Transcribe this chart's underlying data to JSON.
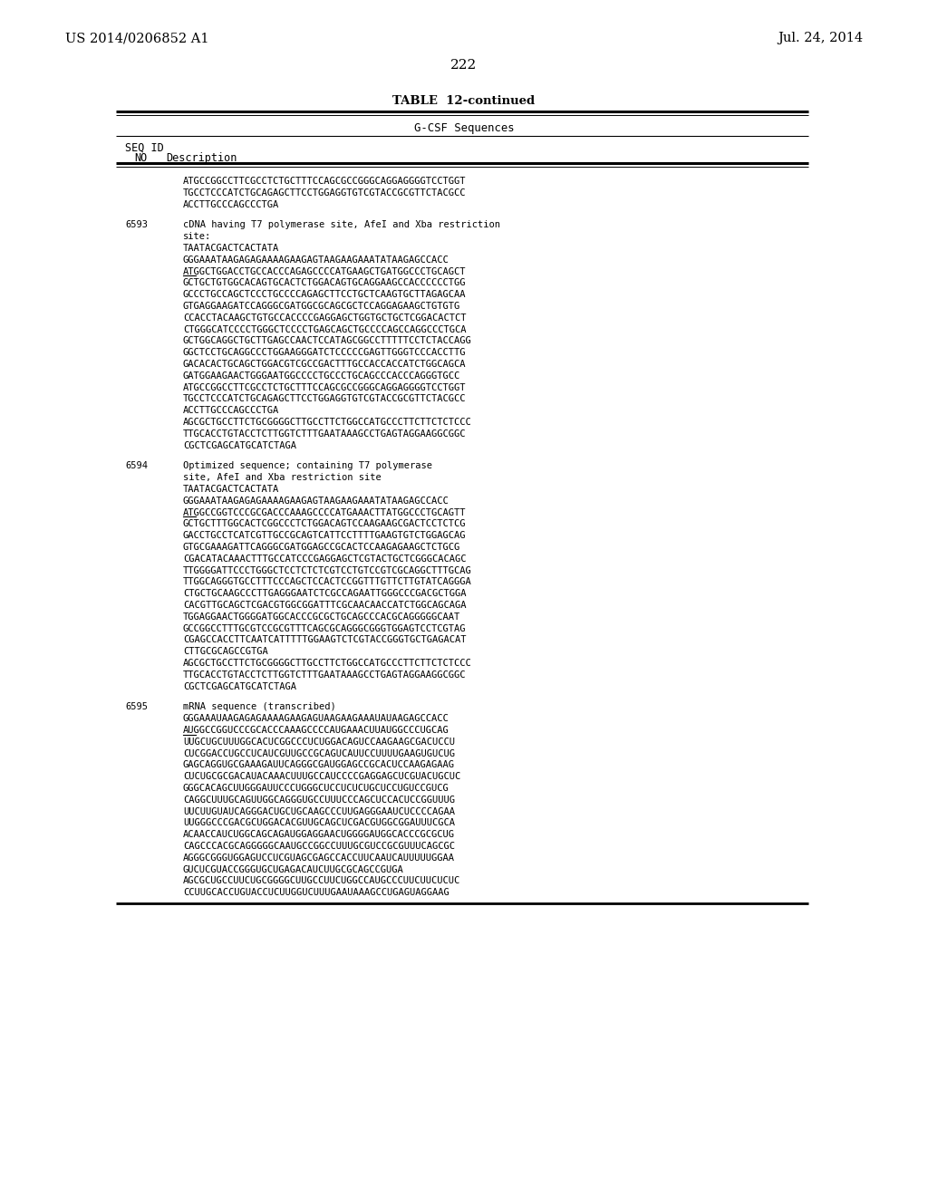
{
  "header_left": "US 2014/0206852 A1",
  "header_right": "Jul. 24, 2014",
  "page_number": "222",
  "table_title": "TABLE  12-continued",
  "table_header": "G-CSF Sequences",
  "col1": "SEQ ID",
  "col2": "NO",
  "col3": "Description",
  "seq_prefix": [
    "ATGCCGGCCTTCGCCTCTGCTTTCCAGCGCCGGGCAGGAGGGGTCCTGGT",
    "TGCCTCCCATCTGCAGAGCTTCCTGGAGGTGTCGTACCGCGTTCTACGCC",
    "ACCTTGCCCAGCCCTGA"
  ],
  "entry_6593_desc1": "cDNA having T7 polymerase site, AfeI and Xba restriction",
  "entry_6593_desc2": "site:",
  "entry_6593_lines": [
    [
      "TAATACGACTCACTATA",
      false
    ],
    [
      "GGGAAATAAGAGAGAAAAGAAGAGTAAGAAGAAATATAAGAGCCACC",
      false
    ],
    [
      "ATGGCTGGACCTGCCACCCAGAGCCCCATGAAGCTGATGGCCCTGCAGCT",
      true
    ],
    [
      "GCTGCTGTGGCACAGTGCACTCTGGACAGTGCAGGAAGCCACCCCCCTGG",
      false
    ],
    [
      "GCCCTGCCAGCTCCCTGCCCCAGAGCTTCCTGCTCAAGTGCTTAGAGCAA",
      false
    ],
    [
      "GTGAGGAAGATCCAGGGCGATGGCGCAGCGCTCCAGGAGAAGCTGTGTG",
      false
    ],
    [
      "CCACCTACAAGCTGTGCCACCCCGAGGAGCTGGTGCTGCTCGGACACTCT",
      false
    ],
    [
      "CTGGGCATCCCCTGGGCTCCCCTGAGCAGCTGCCCCAGCCAGGCCCTGCA",
      false
    ],
    [
      "GCTGGCAGGCTGCTTGAGCCAACTCCATAGCGGCCTTTTTCCTCTACCAGG",
      false
    ],
    [
      "GGCTCCTGCAGGCCCTGGAAGGGATCTCCCCCGAGTTGGGTCCCACCTTG",
      false
    ],
    [
      "GACACACTGCAGCTGGACGTCGCCGACTTTGCCACCACCATCTGGCAGCA",
      false
    ],
    [
      "GATGGAAGAACTGGGAATGGCCCCTGCCCTGCAGCCCACCCAGGGTGCC",
      false
    ],
    [
      "ATGCCGGCCTTCGCCTCTGCTTTCCAGCGCCGGGCAGGAGGGGTCCTGGT",
      false
    ],
    [
      "TGCCTCCCATCTGCAGAGCTTCCTGGAGGTGTCGTACCGCGTTCTACGCC",
      false
    ],
    [
      "ACCTTGCCCAGCCCTGA",
      false
    ],
    [
      "AGCGCTGCCTTCTGCGGGGCTTGCCTTCTGGCCATGCCCTTCTTCTCTCCC",
      false
    ],
    [
      "TTGCACCTGTACCTCTTGGTCTTTGAATAAAGCCTGAGTAGGAAGGCGGC",
      false
    ],
    [
      "CGCTCGAGCATGCATCTAGA",
      false
    ]
  ],
  "entry_6594_desc1": "Optimized sequence; containing T7 polymerase",
  "entry_6594_desc2": "site, AfeI and Xba restriction site",
  "entry_6594_lines": [
    [
      "TAATACGACTCACTATA",
      false
    ],
    [
      "GGGAAATAAGAGAGAAAAGAAGAGTAAGAAGAAATATAAGAGCCACC",
      false
    ],
    [
      "ATGGCCGGTCCCGCGACCCAAAGCCCCATGAAACTTATGGCCCTGCAGTT",
      true
    ],
    [
      "GCTGCTTTGGCACTCGGCCCTCTGGACAGTCCAAGAAGCGACTCCTCTCG",
      false
    ],
    [
      "GACCTGCCTCATCGTTGCCGCAGTCATTCCTTTTGAAGTGTCTGGAGCAG",
      false
    ],
    [
      "GTGCGAAAGATTCAGGGCGATGGAGCCGCACTCCAAGAGAAGCTCTGCG",
      false
    ],
    [
      "CGACATACAAACTTTGCCATCCCGAGGAGCTCGTACTGCTCGGGCACAGC",
      false
    ],
    [
      "TTGGGGATTCCCTGGGCTCCTCTCTCGTCCTGTCCGTCGCAGGCTTTGCAG",
      false
    ],
    [
      "TTGGCAGGGTGCCTTTCCCAGCTCCACTCCGGTTTGTTCTTGTATCAGGGA",
      false
    ],
    [
      "CTGCTGCAAGCCCTTGAGGGAATCTCGCCAGAATTGGGCCCGACGCTGGA",
      false
    ],
    [
      "CACGTTGCAGCTCGACGTGGCGGATTTCGCAACAACCATCTGGCAGCAGA",
      false
    ],
    [
      "TGGAGGAACTGGGGATGGCACCCGCGCTGCAGCCCACGCAGGGGGCAAT",
      false
    ],
    [
      "GCCGGCCTTTGCGTCCGCGTTTCAGCGCAGGGCGGGTGGAGTCCTCGTAG",
      false
    ],
    [
      "CGAGCCACCTTCAATCATTTTTGGAAGTCTCGTACCGGGTGCTGAGACAT",
      false
    ],
    [
      "CTTGCGCAGCCGTGA",
      false
    ],
    [
      "AGCGCTGCCTTCTGCGGGGCTTGCCTTCTGGCCATGCCCTTCTTCTCTCCC",
      false
    ],
    [
      "TTGCACCTGTACCTCTTGGTCTTTGAATAAAGCCTGAGTAGGAAGGCGGC",
      false
    ],
    [
      "CGCTCGAGCATGCATCTAGA",
      false
    ]
  ],
  "entry_6595_desc1": "mRNA sequence (transcribed)",
  "entry_6595_lines": [
    [
      "GGGAAAUAAGAGAGAAAAGAAGAGUAAGAAGAAAUAUAAGAGCCACC",
      false
    ],
    [
      "AUGGCCGGUCCCGCACCCAAAGCCCCAUGAAACUUAUGGCCCUGCAG",
      true
    ],
    [
      "UUGCUGCUUUGGCACUCGGCCCUCUGGACAGUCCAAGAAGCGACUCCU",
      false
    ],
    [
      "CUCGGACCUGCCUCAUCGUUGCCGCAGUCAUUCCUUUUGAAGUGUCUG",
      false
    ],
    [
      "GAGCAGGUGCGAAAGAUUCAGGGCGAUGGAGCCGCACUCCAAGAGAAG",
      false
    ],
    [
      "CUCUGCGCGACAUACAAACUUUGCCAUCCCCGAGGAGCUCGUACUGCUC",
      false
    ],
    [
      "GGGCACAGCUUGGGAUUCCCUGGGCUCCUCUCUGCUCCUGUCCGUCG",
      false
    ],
    [
      "CAGGCUUUGCAGUUGGCAGGGUGCCUUUCCCAGCUCCACUCCGGUUUG",
      false
    ],
    [
      "UUCUUGUAUCAGGGACUGCUGCAAGCCCUUGAGGGAAUCUCCCCAGAA",
      false
    ],
    [
      "UUGGGCCCGACGCUGGACACGUUGCAGCUCGACGUGGCGGAUUUCGCA",
      false
    ],
    [
      "ACAACCAUCUGGCAGCAGAUGGAGGAACUGGGGAUGGCACCCGCGCUG",
      false
    ],
    [
      "CAGCCCACGCAGGGGGCAAUGCCGGCCUUUGCGUCCGCGUUUCAGCGC",
      false
    ],
    [
      "AGGGCGGGUGGAGUCCUCGUAGCGAGCCACCUUCAAUCAUUUUUGGAA",
      false
    ],
    [
      "GUCUCGUACCGGGUGCUGAGACAUCUUGCGCAGCCGUGA",
      false
    ],
    [
      "AGCGCUGCCUUCUGCGGGGCUUGCCUUCUGGCCAUGCCCUUCUUCUCUC",
      false
    ],
    [
      "CCUUGCACCUGUACCUCUUGGUCUUUGAAUAAAGCCUGAGUAGGAAG",
      false
    ]
  ],
  "bg_color": "#ffffff",
  "text_color": "#000000"
}
